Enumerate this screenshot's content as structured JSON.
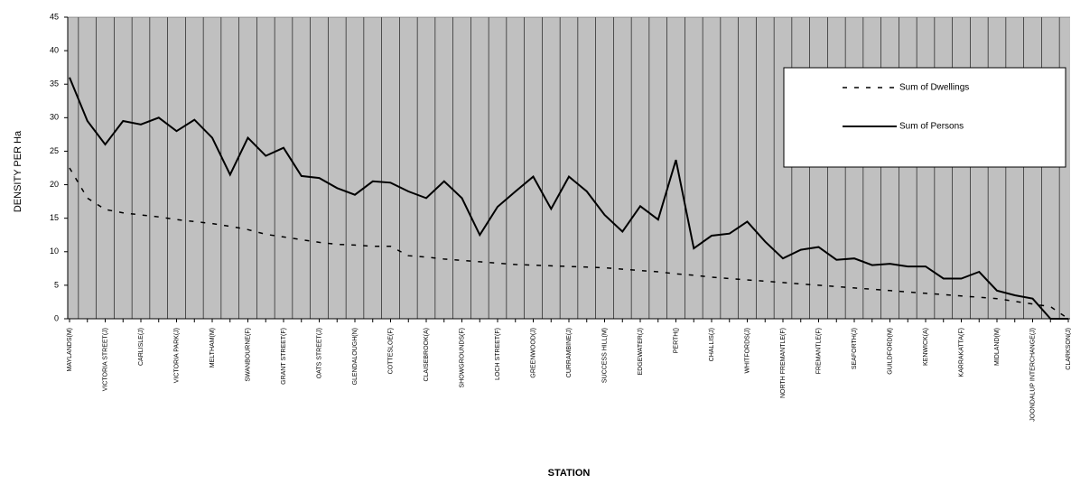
{
  "chart_data": {
    "type": "line",
    "x_label": "STATION",
    "y_label": "DENSITY PER Ha",
    "ylim": [
      0,
      45
    ],
    "yticks": [
      0,
      5,
      10,
      15,
      20,
      25,
      30,
      35,
      40,
      45
    ],
    "grid": true,
    "legend_position": "upper right",
    "categories": [
      "MAYLANDS(M)",
      null,
      "VICTORIA STREET(J)",
      null,
      "CARLISLE(J)",
      null,
      "VICTORIA PARK(J)",
      null,
      "MELTHAM(M)",
      null,
      "SWANBOURNE(F)",
      null,
      "GRANT STREET(F)",
      null,
      "OATS STREET(J)",
      null,
      "GLENDALOUGH(N)",
      null,
      "COTTESLOE(F)",
      null,
      "CLAISEBROOK(A)",
      null,
      "SHOWGROUNDS(F)",
      null,
      "LOCH STREET(F)",
      null,
      "GREENWOOD(J)",
      null,
      "CURRAMBINE(J)",
      null,
      "SUCCESS HILL(M)",
      null,
      "EDGEWATER(J)",
      null,
      "PERTH()",
      null,
      "CHALLIS(J)",
      null,
      "WHITFORDS(J)",
      null,
      "NORTH FREMANTLE(F)",
      null,
      "FREMANTLE(F)",
      null,
      "SEAFORTH(J)",
      null,
      "GUILDFORD(M)",
      null,
      "KENWICK(A)",
      null,
      "KARRAKATTA(F)",
      null,
      "MIDLAND(M)",
      null,
      "JOONDALUP INTERCHANGE(J)",
      null,
      "CLARKSON(J)"
    ],
    "series": [
      {
        "name": "Sum of Dwellings",
        "color": "#000000",
        "line_style": "dashed",
        "values": [
          22.5,
          18,
          16.3,
          15.8,
          15.5,
          15.2,
          14.8,
          14.5,
          14.2,
          13.8,
          13.3,
          12.6,
          12.2,
          11.8,
          11.4,
          11.1,
          11,
          10.8,
          10.8,
          9.4,
          9.2,
          8.9,
          8.7,
          8.5,
          8.3,
          8.1,
          8,
          7.9,
          7.8,
          7.7,
          7.6,
          7.4,
          7.2,
          7,
          6.7,
          6.5,
          6.2,
          6,
          5.8,
          5.6,
          5.4,
          5.2,
          5,
          4.8,
          4.6,
          4.4,
          4.2,
          4,
          3.8,
          3.6,
          3.4,
          3.2,
          3,
          2.6,
          2.2,
          1.8,
          0
        ]
      },
      {
        "name": "Sum of Persons",
        "color": "#000000",
        "line_style": "solid",
        "values": [
          36,
          29.5,
          26,
          29.5,
          29,
          30,
          28,
          29.7,
          27,
          21.5,
          27,
          24.3,
          25.5,
          21.3,
          21,
          19.5,
          18.5,
          20.5,
          20.3,
          19,
          18,
          20.5,
          18,
          12.5,
          16.7,
          19,
          21.2,
          16.4,
          21.2,
          19,
          15.5,
          13,
          16.8,
          14.8,
          23.7,
          10.5,
          12.4,
          12.7,
          14.5,
          11.5,
          9,
          10.3,
          10.7,
          8.8,
          9,
          8,
          8.2,
          7.8,
          7.8,
          6,
          6,
          7,
          4.2,
          3.5,
          3,
          0,
          0
        ]
      }
    ]
  }
}
